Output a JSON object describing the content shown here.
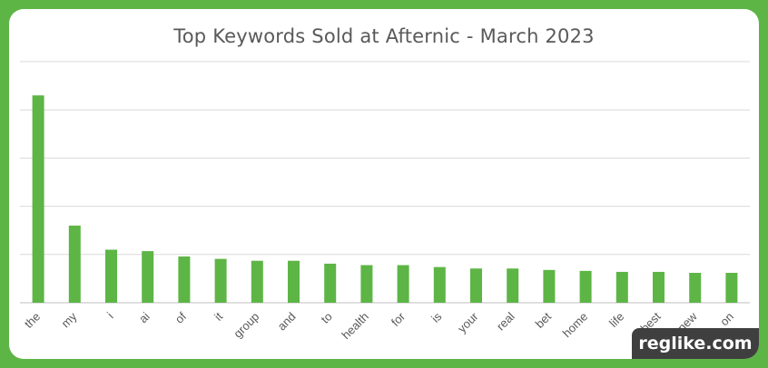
{
  "chart_data": {
    "type": "bar",
    "title": "Top Keywords Sold at Afternic - March 2023",
    "categories": [
      "the",
      "my",
      "i",
      "ai",
      "of",
      "it",
      "group",
      "and",
      "to",
      "health",
      "for",
      "is",
      "your",
      "real",
      "bet",
      "home",
      "life",
      "best",
      "new",
      "on"
    ],
    "values": [
      4.3,
      1.6,
      1.1,
      1.07,
      0.96,
      0.91,
      0.87,
      0.87,
      0.81,
      0.78,
      0.78,
      0.74,
      0.71,
      0.71,
      0.68,
      0.66,
      0.64,
      0.64,
      0.62,
      0.62
    ],
    "ylim": [
      0,
      5
    ],
    "grid": true,
    "bar_color": "#5db545",
    "xlabel": "",
    "ylabel": ""
  },
  "watermark": "reglike.com"
}
